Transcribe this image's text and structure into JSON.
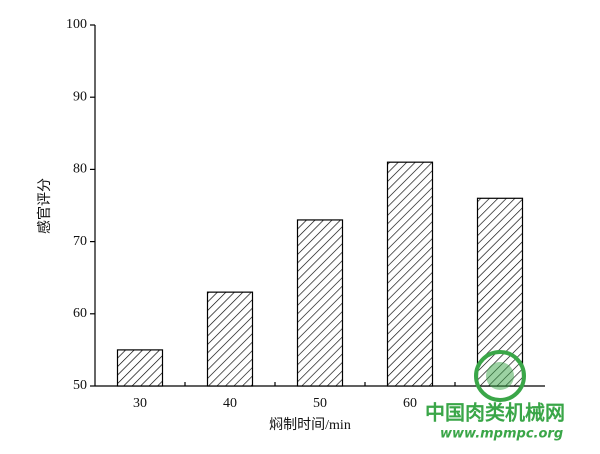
{
  "chart_data": {
    "type": "bar",
    "y_label": "感官评分",
    "x_label": "焖制时间/min",
    "categories": [
      "30",
      "40",
      "50",
      "60",
      null
    ],
    "values": [
      55,
      63,
      73,
      81,
      76
    ],
    "ylim": [
      50,
      100
    ],
    "yticks": [
      50,
      60,
      70,
      80,
      90,
      100
    ]
  },
  "watermark": {
    "title": "中国肉类机械网",
    "url": "www.mpmpc.org"
  }
}
